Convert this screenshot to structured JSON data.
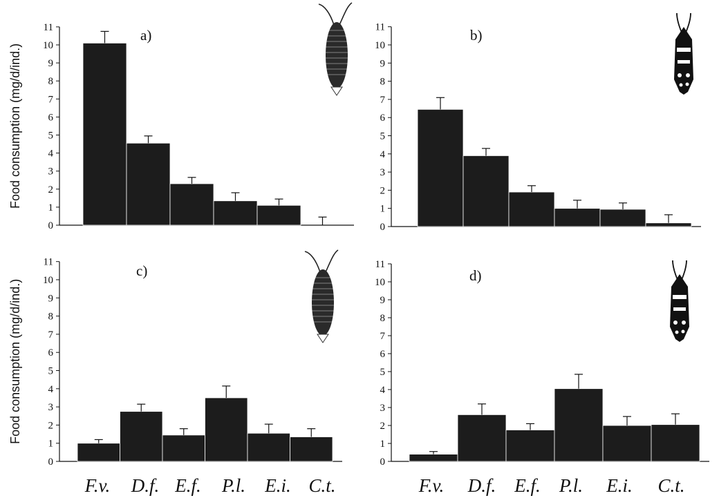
{
  "chart_data": [
    {
      "type": "bar",
      "panel_label": "a)",
      "ylabel": "Food consumption (mg/d/ind.)",
      "ylim": [
        0,
        11
      ],
      "yticks": [
        "0",
        "1",
        "2",
        "3",
        "4",
        "5",
        "6",
        "7",
        "8",
        "9",
        "10",
        "11"
      ],
      "categories": [
        "F.v.",
        "D.f.",
        "E.f.",
        "P.l.",
        "E.i.",
        "C.t."
      ],
      "values": [
        10.1,
        4.55,
        2.3,
        1.35,
        1.1,
        0.0
      ],
      "errors": [
        0.65,
        0.4,
        0.35,
        0.45,
        0.35,
        0.45
      ],
      "icon": "isopod-icon"
    },
    {
      "type": "bar",
      "panel_label": "b)",
      "ylabel": "",
      "ylim": [
        0,
        11
      ],
      "yticks": [
        "0",
        "1",
        "2",
        "3",
        "4",
        "5",
        "6",
        "7",
        "8",
        "9",
        "10",
        "11"
      ],
      "categories": [
        "F.v.",
        "D.f.",
        "E.f.",
        "P.l.",
        "E.i.",
        "C.t."
      ],
      "values": [
        6.45,
        3.9,
        1.9,
        1.0,
        0.95,
        0.2
      ],
      "errors": [
        0.65,
        0.4,
        0.35,
        0.45,
        0.35,
        0.45
      ],
      "icon": "amphipod-icon"
    },
    {
      "type": "bar",
      "panel_label": "c)",
      "ylabel": "Food consumption (mg/d/ind.)",
      "ylim": [
        0,
        11
      ],
      "yticks": [
        "0",
        "1",
        "2",
        "3",
        "4",
        "5",
        "6",
        "7",
        "8",
        "9",
        "10",
        "11"
      ],
      "categories": [
        "F.v.",
        "D.f.",
        "E.f.",
        "P.l.",
        "E.i.",
        "C.t."
      ],
      "values": [
        1.0,
        2.75,
        1.45,
        3.5,
        1.55,
        1.35
      ],
      "errors": [
        0.2,
        0.4,
        0.35,
        0.65,
        0.5,
        0.45
      ],
      "icon": "isopod-icon"
    },
    {
      "type": "bar",
      "panel_label": "d)",
      "ylabel": "",
      "ylim": [
        0,
        11
      ],
      "yticks": [
        "0",
        "1",
        "2",
        "3",
        "4",
        "5",
        "6",
        "7",
        "8",
        "9",
        "10",
        "11"
      ],
      "categories": [
        "F.v.",
        "D.f.",
        "E.f.",
        "P.l.",
        "E.i.",
        "C.t."
      ],
      "values": [
        0.4,
        2.6,
        1.75,
        4.05,
        2.0,
        2.05
      ],
      "errors": [
        0.15,
        0.6,
        0.35,
        0.8,
        0.5,
        0.6
      ],
      "icon": "amphipod-icon"
    }
  ],
  "x_category_labels": {
    "left": [
      "F.v.",
      "D.f.",
      "E.f.",
      "P.l.",
      "E.i.",
      "C.t."
    ],
    "right": [
      "F.v.",
      "D.f.",
      "E.f.",
      "P.l.",
      "E.i.",
      "C.t."
    ]
  },
  "colors": {
    "bar": "#1c1c1c",
    "axis": "#111111",
    "background": "#ffffff"
  }
}
